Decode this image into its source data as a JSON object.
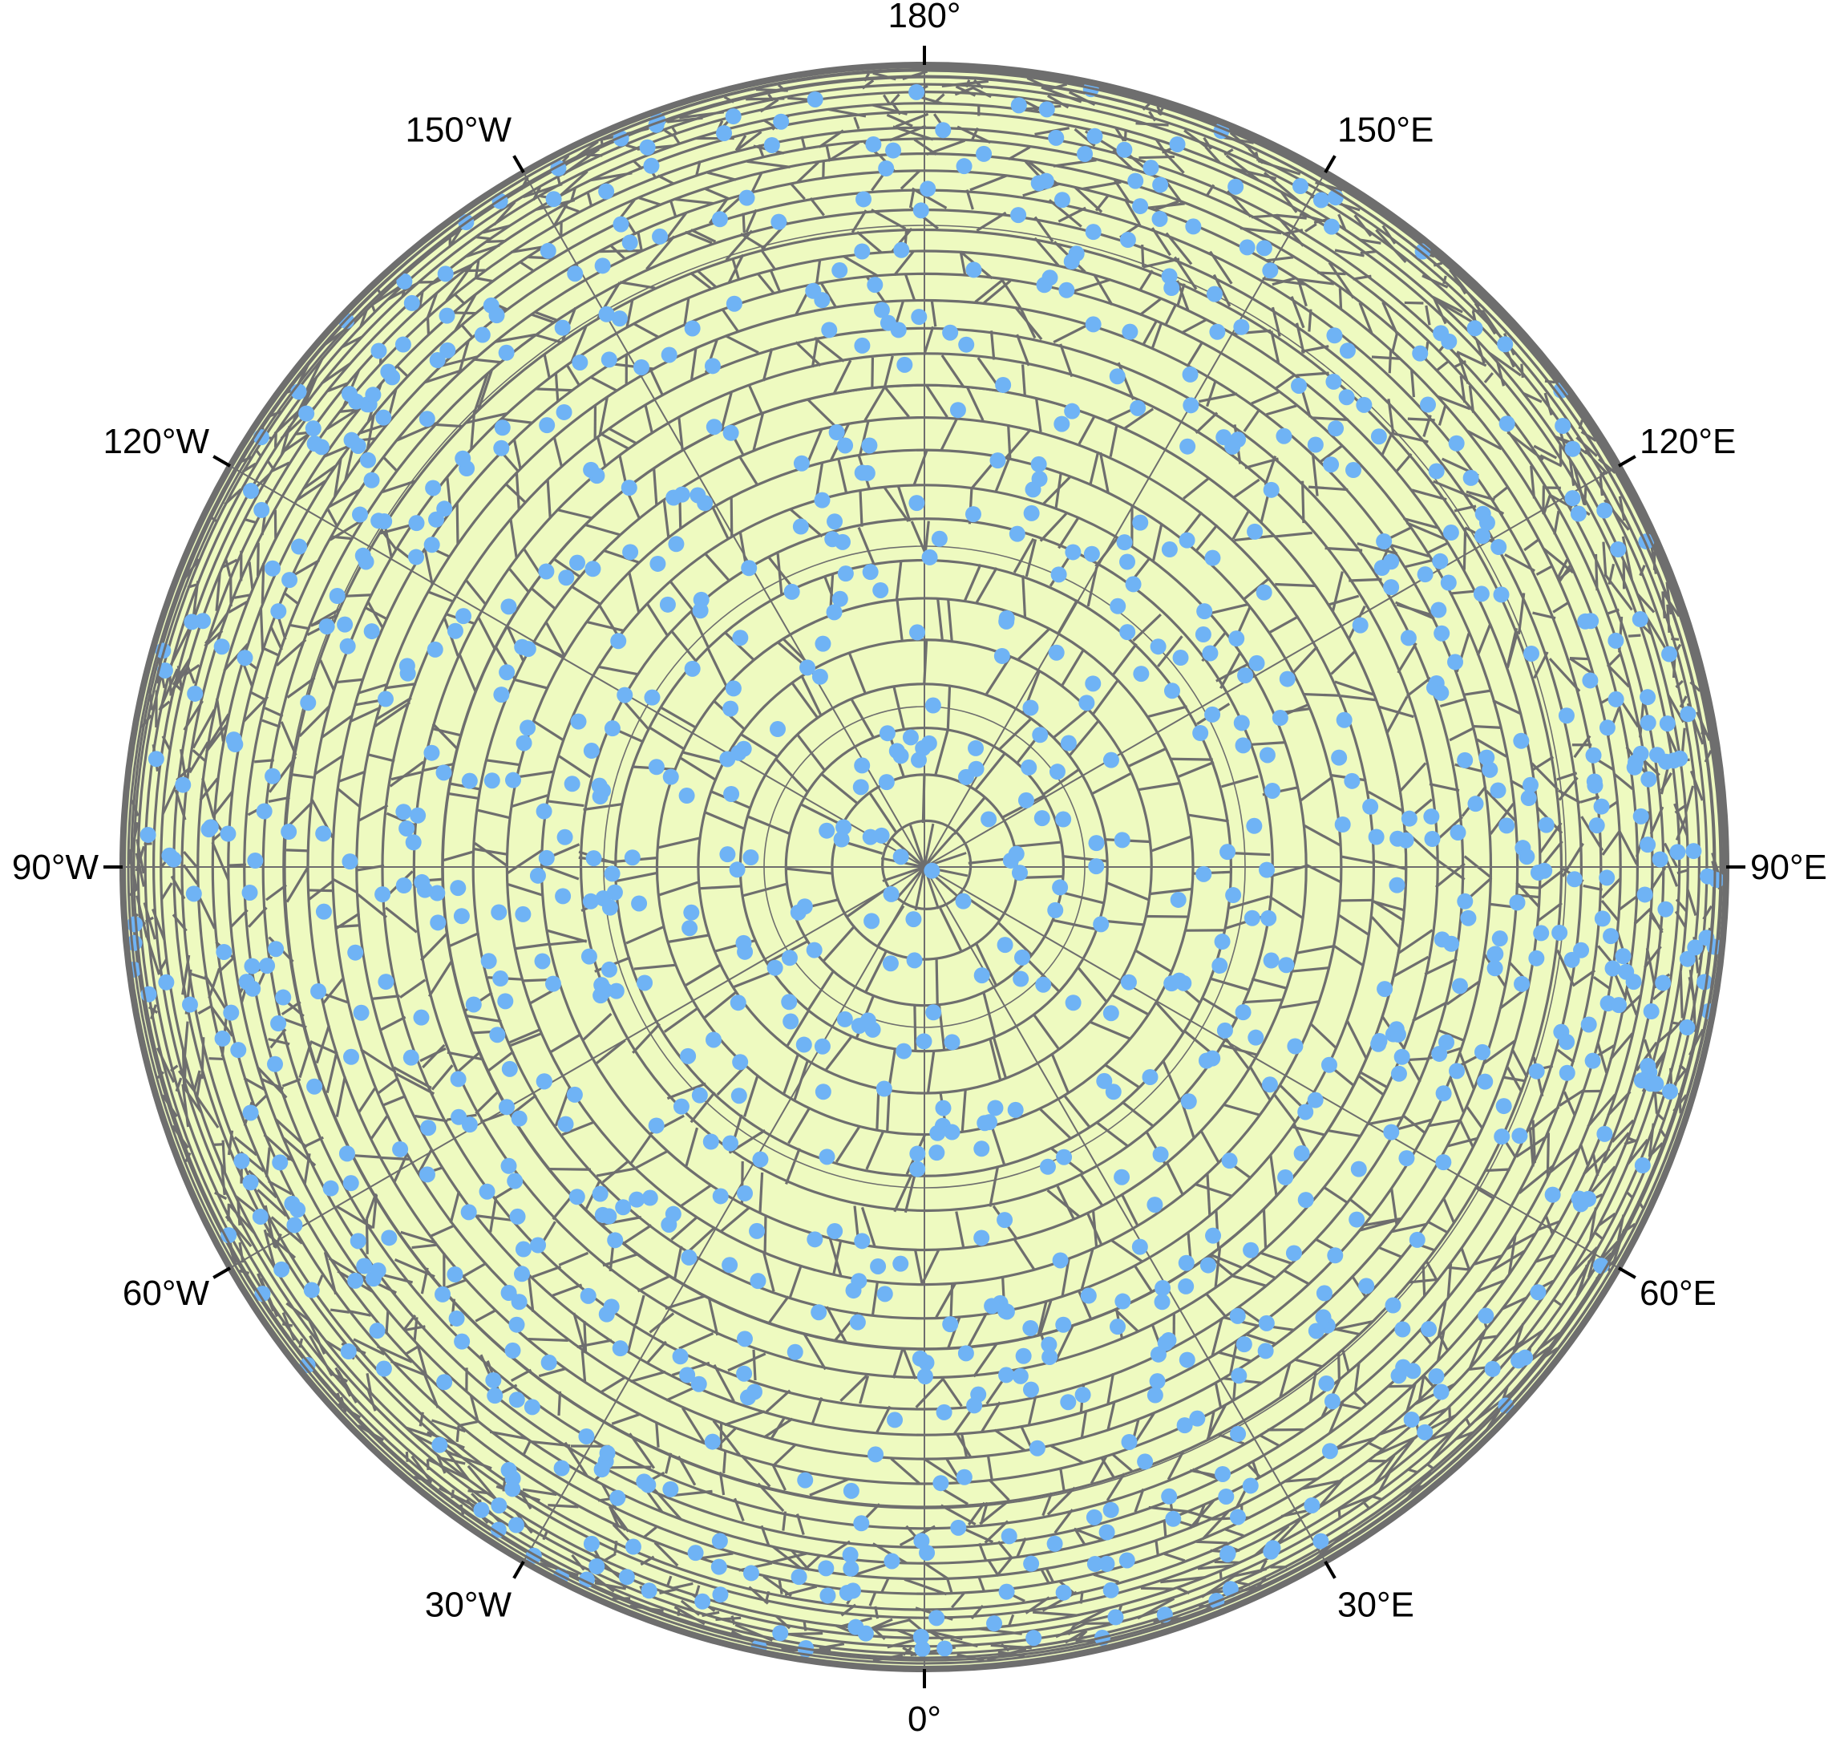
{
  "map": {
    "projection": "azimuthal-polar",
    "center": "pole",
    "colors": {
      "land_fill": "#eefac0",
      "cell_edge": "#6e6e6e",
      "graticule": "#6e6e6e",
      "frame": "#6e6e6e",
      "tick": "#000000",
      "point": "#6fb3f5"
    },
    "longitude_labels": [
      {
        "lon": 0,
        "text": "0°"
      },
      {
        "lon": 30,
        "text": "30°E"
      },
      {
        "lon": 60,
        "text": "60°E"
      },
      {
        "lon": 90,
        "text": "90°E"
      },
      {
        "lon": 120,
        "text": "120°E"
      },
      {
        "lon": 150,
        "text": "150°E"
      },
      {
        "lon": 180,
        "text": "180°"
      },
      {
        "lon": -150,
        "text": "150°W"
      },
      {
        "lon": -120,
        "text": "120°W"
      },
      {
        "lon": -90,
        "text": "90°W"
      },
      {
        "lon": -60,
        "text": "60°W"
      },
      {
        "lon": -30,
        "text": "30°W"
      }
    ],
    "layers": {
      "cells": "voronoi-cells",
      "points": "sample-points"
    }
  }
}
